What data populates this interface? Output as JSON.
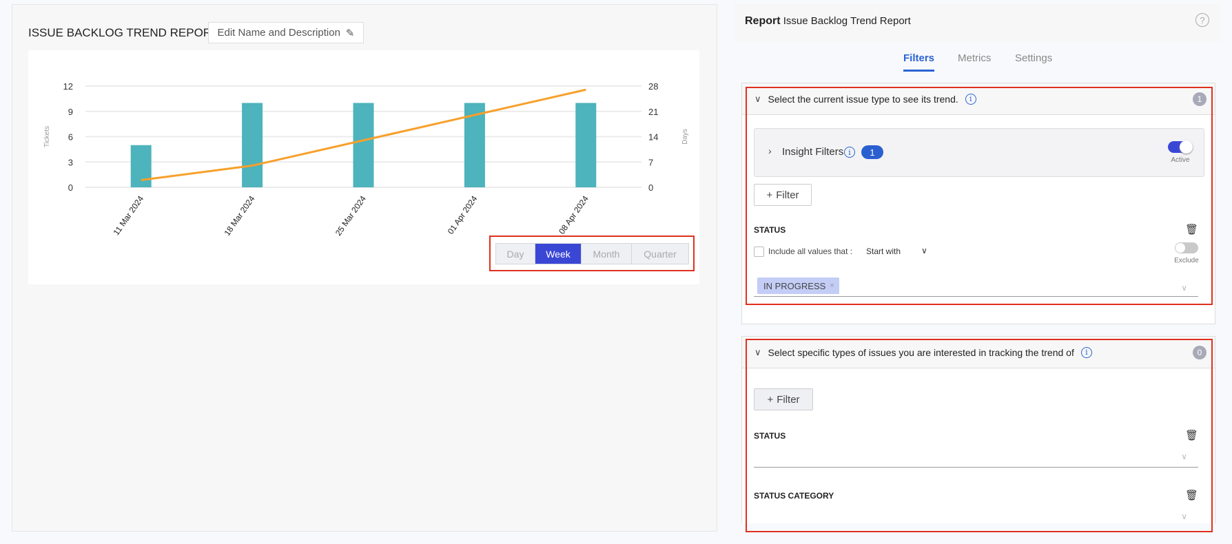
{
  "report": {
    "title": "ISSUE BACKLOG TREND REPORT",
    "edit_label": "Edit Name and Description"
  },
  "granularity": {
    "options": [
      "Day",
      "Week",
      "Month",
      "Quarter"
    ],
    "selected": "Week"
  },
  "chart_data": {
    "type": "bar+line",
    "categories": [
      "11 Mar 2024",
      "18 Mar 2024",
      "25 Mar 2024",
      "01 Apr 2024",
      "08 Apr 2024"
    ],
    "series": [
      {
        "axis": "left",
        "type": "bar",
        "values": [
          5,
          10,
          10,
          10,
          10
        ],
        "color": "#4db3bc"
      },
      {
        "axis": "right",
        "type": "line",
        "values": [
          2,
          6,
          13,
          20,
          27
        ],
        "color": "#f7a02b"
      }
    ],
    "ylabel": "Tickets",
    "y2label": "Days",
    "ylim": [
      0,
      12
    ],
    "y2lim": [
      0,
      28
    ],
    "yticks": [
      0,
      3,
      6,
      9,
      12
    ],
    "y2ticks": [
      0,
      7,
      14,
      21,
      28
    ],
    "grid": true
  },
  "panel": {
    "label": "Report",
    "name": "Issue Backlog Trend Report",
    "tabs": [
      "Filters",
      "Metrics",
      "Settings"
    ],
    "active_tab": "Filters"
  },
  "section1": {
    "title": "Select the current issue type to see its trend.",
    "count": "1",
    "insight_label": "Insight Filters",
    "insight_count": "1",
    "active_label": "Active",
    "filter_btn": "Filter",
    "status_label": "STATUS",
    "include_label": "Include all values that :",
    "match_mode": "Start with",
    "exclude_label": "Exclude",
    "chip": "IN PROGRESS"
  },
  "section2": {
    "title": "Select specific types of issues you are interested in tracking the trend of",
    "count": "0",
    "filter_btn": "Filter",
    "status_label": "STATUS",
    "status_category_label": "STATUS CATEGORY"
  }
}
